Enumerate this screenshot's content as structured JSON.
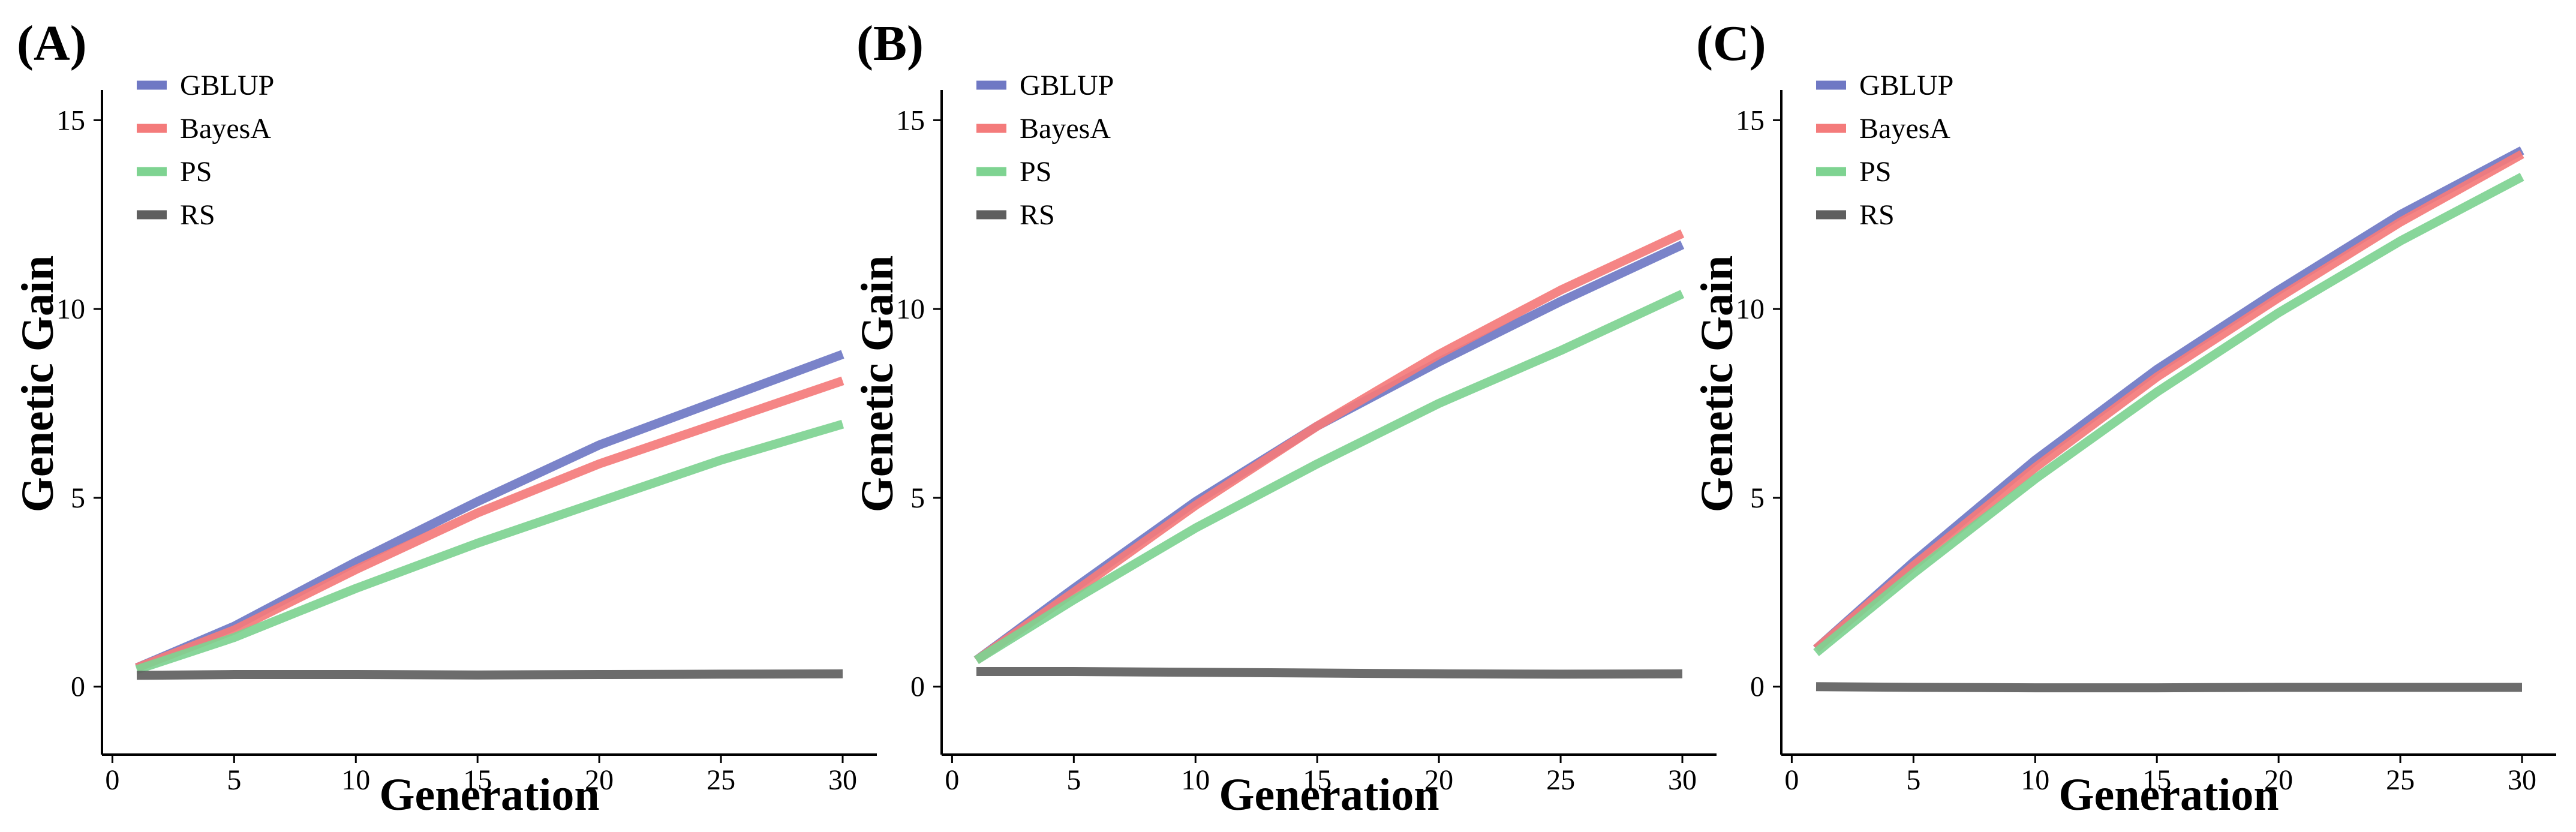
{
  "chart_data": [
    {
      "panel": "(A)",
      "type": "line",
      "xlabel": "Generation",
      "ylabel": "Genetic Gain",
      "xlim": [
        1,
        30
      ],
      "ylim": [
        -1.8,
        15.8
      ],
      "xticks": [
        0,
        5,
        10,
        15,
        20,
        25,
        30
      ],
      "yticks": [
        0,
        5,
        10,
        15
      ],
      "legend_position": "top-left",
      "series": [
        {
          "name": "GBLUP",
          "color": "#6f78c4",
          "x": [
            1,
            5,
            10,
            15,
            20,
            25,
            30
          ],
          "values": [
            0.5,
            1.6,
            3.3,
            4.9,
            6.4,
            7.6,
            8.8
          ]
        },
        {
          "name": "BayesA",
          "color": "#f47b7b",
          "x": [
            1,
            5,
            10,
            15,
            20,
            25,
            30
          ],
          "values": [
            0.5,
            1.5,
            3.1,
            4.6,
            5.9,
            7.0,
            8.1
          ]
        },
        {
          "name": "PS",
          "color": "#7ed391",
          "x": [
            1,
            5,
            10,
            15,
            20,
            25,
            30
          ],
          "values": [
            0.45,
            1.3,
            2.6,
            3.8,
            4.9,
            6.0,
            6.95
          ]
        },
        {
          "name": "RS",
          "color": "#5f5f5f",
          "x": [
            1,
            5,
            10,
            15,
            20,
            25,
            30
          ],
          "values": [
            0.3,
            0.32,
            0.32,
            0.31,
            0.32,
            0.33,
            0.34
          ]
        }
      ]
    },
    {
      "panel": "(B)",
      "type": "line",
      "xlabel": "Generation",
      "ylabel": "Genetic Gain",
      "xlim": [
        1,
        30
      ],
      "ylim": [
        -1.8,
        15.8
      ],
      "xticks": [
        0,
        5,
        10,
        15,
        20,
        25,
        30
      ],
      "yticks": [
        0,
        5,
        10,
        15
      ],
      "legend_position": "top-left",
      "series": [
        {
          "name": "GBLUP",
          "color": "#6f78c4",
          "x": [
            1,
            5,
            10,
            15,
            20,
            25,
            30
          ],
          "values": [
            0.7,
            2.6,
            4.9,
            6.9,
            8.6,
            10.2,
            11.7
          ]
        },
        {
          "name": "BayesA",
          "color": "#f47b7b",
          "x": [
            1,
            5,
            10,
            15,
            20,
            25,
            30
          ],
          "values": [
            0.7,
            2.5,
            4.8,
            6.9,
            8.8,
            10.5,
            12.0
          ]
        },
        {
          "name": "PS",
          "color": "#7ed391",
          "x": [
            1,
            5,
            10,
            15,
            20,
            25,
            30
          ],
          "values": [
            0.7,
            2.3,
            4.2,
            5.9,
            7.5,
            8.9,
            10.4
          ]
        },
        {
          "name": "RS",
          "color": "#5f5f5f",
          "x": [
            1,
            5,
            10,
            15,
            20,
            25,
            30
          ],
          "values": [
            0.4,
            0.4,
            0.38,
            0.36,
            0.34,
            0.33,
            0.34
          ]
        }
      ]
    },
    {
      "panel": "(C)",
      "type": "line",
      "xlabel": "Generation",
      "ylabel": "Genetic Gain",
      "xlim": [
        1,
        30
      ],
      "ylim": [
        -1.8,
        15.8
      ],
      "xticks": [
        0,
        5,
        10,
        15,
        20,
        25,
        30
      ],
      "yticks": [
        0,
        5,
        10,
        15
      ],
      "legend_position": "top-left",
      "series": [
        {
          "name": "GBLUP",
          "color": "#6f78c4",
          "x": [
            1,
            5,
            10,
            15,
            20,
            25,
            30
          ],
          "values": [
            1.0,
            3.3,
            6.0,
            8.4,
            10.5,
            12.5,
            14.2
          ]
        },
        {
          "name": "BayesA",
          "color": "#f47b7b",
          "x": [
            1,
            5,
            10,
            15,
            20,
            25,
            30
          ],
          "values": [
            1.0,
            3.2,
            5.8,
            8.2,
            10.3,
            12.3,
            14.1
          ]
        },
        {
          "name": "PS",
          "color": "#7ed391",
          "x": [
            1,
            5,
            10,
            15,
            20,
            25,
            30
          ],
          "values": [
            0.9,
            3.0,
            5.5,
            7.8,
            9.9,
            11.8,
            13.5
          ]
        },
        {
          "name": "RS",
          "color": "#5f5f5f",
          "x": [
            1,
            5,
            10,
            15,
            20,
            25,
            30
          ],
          "values": [
            0.0,
            -0.02,
            -0.03,
            -0.03,
            -0.02,
            -0.02,
            -0.02
          ]
        }
      ]
    }
  ]
}
